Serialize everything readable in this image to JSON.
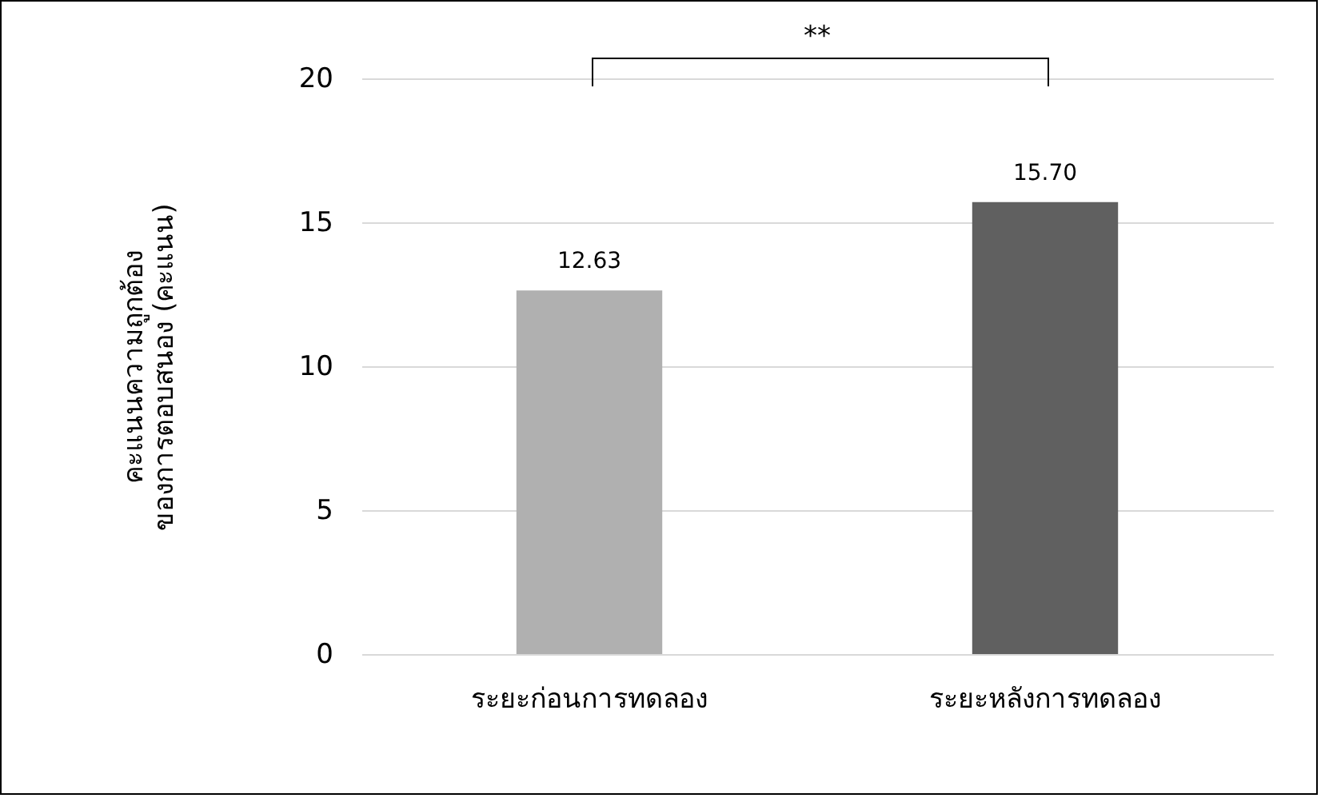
{
  "chart_data": {
    "type": "bar",
    "ylabel": "คะแนนความถูกต้อง\nของการตอบสนอง (คะแนน)",
    "categories": [
      "ระยะก่อนการทดลอง",
      "ระยะหลังการทดลอง"
    ],
    "values": [
      12.63,
      15.7
    ],
    "value_labels": [
      "12.63",
      "15.70"
    ],
    "colors": [
      "#b0b0b0",
      "#606060"
    ],
    "ylim": [
      0,
      20
    ],
    "yticks": [
      0,
      5,
      10,
      15,
      20
    ],
    "grid": "y",
    "annotations": [
      "**"
    ]
  }
}
